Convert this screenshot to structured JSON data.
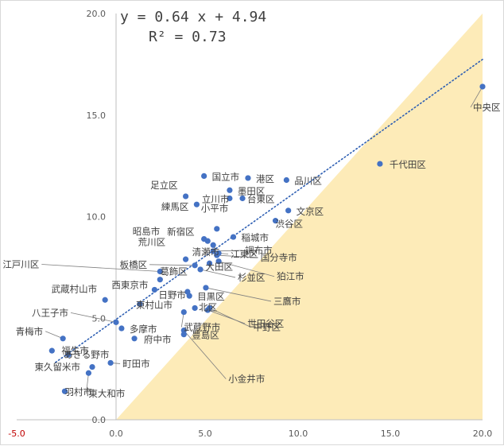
{
  "chart_data": {
    "type": "scatter",
    "title": "",
    "xlabel": "",
    "ylabel": "",
    "xlim": [
      -5,
      20
    ],
    "ylim": [
      0,
      20
    ],
    "x_ticks": [
      "-5.0",
      "0.0",
      "5.0",
      "10.0",
      "15.0",
      "20.0"
    ],
    "y_ticks": [
      "0.0",
      "5.0",
      "10.0",
      "15.0",
      "20.0"
    ],
    "grid": false,
    "shaded_region": "below y = x",
    "shade_color": "#fdebb8",
    "point_color": "#4472c4",
    "trendline": {
      "slope": 0.64,
      "intercept": 4.94,
      "style": "dotted",
      "color": "#2e5fb3",
      "equation_text": "y = 0.64 x + 4.94",
      "r2_text": "R² = 0.73"
    },
    "points": [
      {
        "label": "中央区",
        "x": 20.0,
        "y": 16.4
      },
      {
        "label": "千代田区",
        "x": 14.4,
        "y": 12.6
      },
      {
        "label": "国立市",
        "x": 4.8,
        "y": 12.0
      },
      {
        "label": "港区",
        "x": 7.2,
        "y": 11.9
      },
      {
        "label": "品川区",
        "x": 9.3,
        "y": 11.8
      },
      {
        "label": "墨田区",
        "x": 6.2,
        "y": 11.3
      },
      {
        "label": "足立区",
        "x": 3.8,
        "y": 11.0
      },
      {
        "label": "立川市",
        "x": 6.2,
        "y": 10.9
      },
      {
        "label": "台東区",
        "x": 6.9,
        "y": 10.9
      },
      {
        "label": "練馬区",
        "x": 4.4,
        "y": 10.6
      },
      {
        "label": "文京区",
        "x": 9.4,
        "y": 10.3
      },
      {
        "label": "渋谷区",
        "x": 8.7,
        "y": 9.8
      },
      {
        "label": "小平市",
        "x": 5.5,
        "y": 9.4
      },
      {
        "label": "新宿区",
        "x": 4.8,
        "y": 8.9
      },
      {
        "label": "稲城市",
        "x": 6.4,
        "y": 9.0
      },
      {
        "label": "昭島市",
        "x": 5.0,
        "y": 8.8
      },
      {
        "label": "荒川区",
        "x": 5.3,
        "y": 8.6
      },
      {
        "label": "調布市",
        "x": 5.3,
        "y": 8.3
      },
      {
        "label": "江東区",
        "x": 5.6,
        "y": 8.2
      },
      {
        "label": "清瀬市",
        "x": 3.8,
        "y": 7.9
      },
      {
        "label": "国分寺市",
        "x": 5.5,
        "y": 8.1
      },
      {
        "label": "大田区",
        "x": 5.1,
        "y": 7.7
      },
      {
        "label": "板橋区",
        "x": 4.3,
        "y": 7.6
      },
      {
        "label": "狛江市",
        "x": 5.6,
        "y": 7.8
      },
      {
        "label": "江戸川区",
        "x": 2.4,
        "y": 7.3
      },
      {
        "label": "杉並区",
        "x": 4.6,
        "y": 7.4
      },
      {
        "label": "葛飾区",
        "x": 2.4,
        "y": 6.9
      },
      {
        "label": "武蔵村山市",
        "x": -0.6,
        "y": 5.9
      },
      {
        "label": "西東京市",
        "x": 2.1,
        "y": 6.4
      },
      {
        "label": "三鷹市",
        "x": 4.9,
        "y": 6.5
      },
      {
        "label": "日野市",
        "x": 3.9,
        "y": 6.3
      },
      {
        "label": "目黒区",
        "x": 4.0,
        "y": 6.1
      },
      {
        "label": "東村山市",
        "x": 1.3,
        "y": 5.7
      },
      {
        "label": "北区",
        "x": 4.3,
        "y": 5.5
      },
      {
        "label": "世田谷区",
        "x": 5.0,
        "y": 5.4
      },
      {
        "label": "八王子市",
        "x": 0.0,
        "y": 4.8
      },
      {
        "label": "武蔵野市",
        "x": 3.7,
        "y": 5.3
      },
      {
        "label": "中野区",
        "x": 5.1,
        "y": 5.5
      },
      {
        "label": "多摩市",
        "x": 0.3,
        "y": 4.5
      },
      {
        "label": "豊島区",
        "x": 3.7,
        "y": 4.2
      },
      {
        "label": "府中市",
        "x": 1.0,
        "y": 4.0
      },
      {
        "label": "青梅市",
        "x": -2.9,
        "y": 4.0
      },
      {
        "label": "小金井市",
        "x": 3.7,
        "y": 4.4
      },
      {
        "label": "福生市",
        "x": -3.5,
        "y": 3.4
      },
      {
        "label": "あきる野市",
        "x": -2.6,
        "y": 3.2
      },
      {
        "label": "町田市",
        "x": -0.3,
        "y": 2.8
      },
      {
        "label": "東久留米市",
        "x": -1.3,
        "y": 2.6
      },
      {
        "label": "東大和市",
        "x": -1.5,
        "y": 2.3
      },
      {
        "label": "羽村市",
        "x": -2.8,
        "y": 1.4
      }
    ]
  }
}
